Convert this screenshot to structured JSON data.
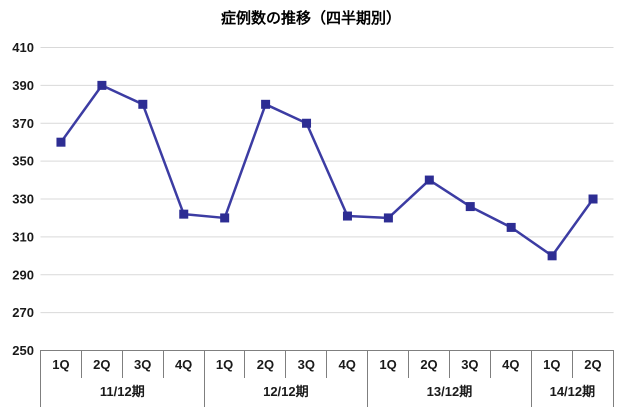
{
  "title": "症例数の推移（四半期別）",
  "colors": {
    "line": "#3c3ca3",
    "marker": "#2d2d93",
    "grid": "#d9d9d9",
    "axis": "#7f7f7f",
    "text": "#1a1a1a",
    "background": "#ffffff"
  },
  "chart_data": {
    "type": "line",
    "title": "症例数の推移（四半期別）",
    "x_groups": [
      {
        "label": "11/12期",
        "quarters": [
          "1Q",
          "2Q",
          "3Q",
          "4Q"
        ]
      },
      {
        "label": "12/12期",
        "quarters": [
          "1Q",
          "2Q",
          "3Q",
          "4Q"
        ]
      },
      {
        "label": "13/12期",
        "quarters": [
          "1Q",
          "2Q",
          "3Q",
          "4Q"
        ]
      },
      {
        "label": "14/12期",
        "quarters": [
          "1Q",
          "2Q"
        ]
      }
    ],
    "values": [
      360,
      390,
      380,
      322,
      320,
      380,
      370,
      321,
      320,
      340,
      326,
      315,
      300,
      330
    ],
    "y_ticks": [
      250,
      270,
      290,
      310,
      330,
      350,
      370,
      390,
      410
    ],
    "ylim": [
      250,
      410
    ],
    "grid": true,
    "legend": false,
    "marker_shape": "square"
  }
}
